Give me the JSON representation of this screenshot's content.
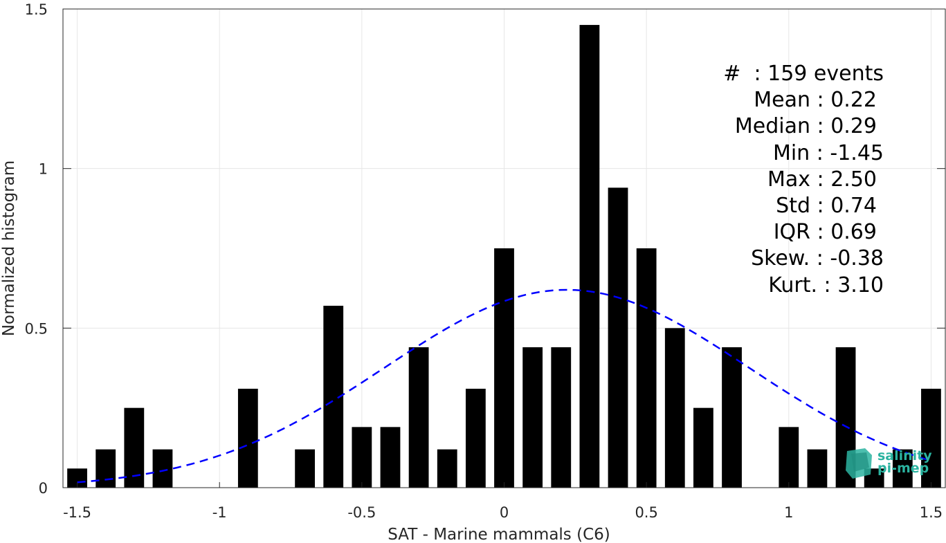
{
  "chart_data": {
    "type": "bar",
    "xlabel": "SAT - Marine mammals (C6)",
    "ylabel": "Normalized histogram",
    "xlim": [
      -1.55,
      1.55
    ],
    "ylim": [
      0,
      1.5
    ],
    "xticks": [
      -1.5,
      -1,
      -0.5,
      0,
      0.5,
      1,
      1.5
    ],
    "xtick_labels": [
      "-1.5",
      "-1",
      "-0.5",
      "0",
      "0.5",
      "1",
      "1.5"
    ],
    "yticks": [
      0,
      0.5,
      1,
      1.5
    ],
    "ytick_labels": [
      "0",
      "0.5",
      "1",
      "1.5"
    ],
    "grid": true,
    "bar_color": "#000000",
    "bins": [
      {
        "x": -1.5,
        "value": 0.06
      },
      {
        "x": -1.4,
        "value": 0.12
      },
      {
        "x": -1.3,
        "value": 0.25
      },
      {
        "x": -1.2,
        "value": 0.12
      },
      {
        "x": -0.9,
        "value": 0.31
      },
      {
        "x": -0.7,
        "value": 0.12
      },
      {
        "x": -0.6,
        "value": 0.57
      },
      {
        "x": -0.5,
        "value": 0.19
      },
      {
        "x": -0.4,
        "value": 0.19
      },
      {
        "x": -0.3,
        "value": 0.44
      },
      {
        "x": -0.2,
        "value": 0.12
      },
      {
        "x": -0.1,
        "value": 0.31
      },
      {
        "x": 0.0,
        "value": 0.75
      },
      {
        "x": 0.1,
        "value": 0.44
      },
      {
        "x": 0.2,
        "value": 0.44
      },
      {
        "x": 0.3,
        "value": 1.45
      },
      {
        "x": 0.4,
        "value": 0.94
      },
      {
        "x": 0.5,
        "value": 0.75
      },
      {
        "x": 0.6,
        "value": 0.5
      },
      {
        "x": 0.7,
        "value": 0.25
      },
      {
        "x": 0.8,
        "value": 0.44
      },
      {
        "x": 1.0,
        "value": 0.19
      },
      {
        "x": 1.1,
        "value": 0.12
      },
      {
        "x": 1.2,
        "value": 0.44
      },
      {
        "x": 1.3,
        "value": 0.06
      },
      {
        "x": 1.4,
        "value": 0.12
      },
      {
        "x": 1.5,
        "value": 0.31
      }
    ],
    "fit": {
      "type": "gaussian",
      "mean": 0.22,
      "std": 0.64,
      "peak": 0.62,
      "x_range": [
        -1.5,
        1.5
      ],
      "color": "#0000ff",
      "style": "dashed"
    },
    "annotations": [
      "#  : 159 events",
      "Mean : 0.22",
      "Median : 0.29",
      "Min : -1.45",
      "Max : 2.50",
      "Std : 0.74",
      "IQR : 0.69",
      "Skew. : -0.38",
      "Kurt. : 3.10"
    ]
  },
  "logo": {
    "line1": "salinity",
    "line2": "pi-mep",
    "color": "#2bb3a0"
  }
}
